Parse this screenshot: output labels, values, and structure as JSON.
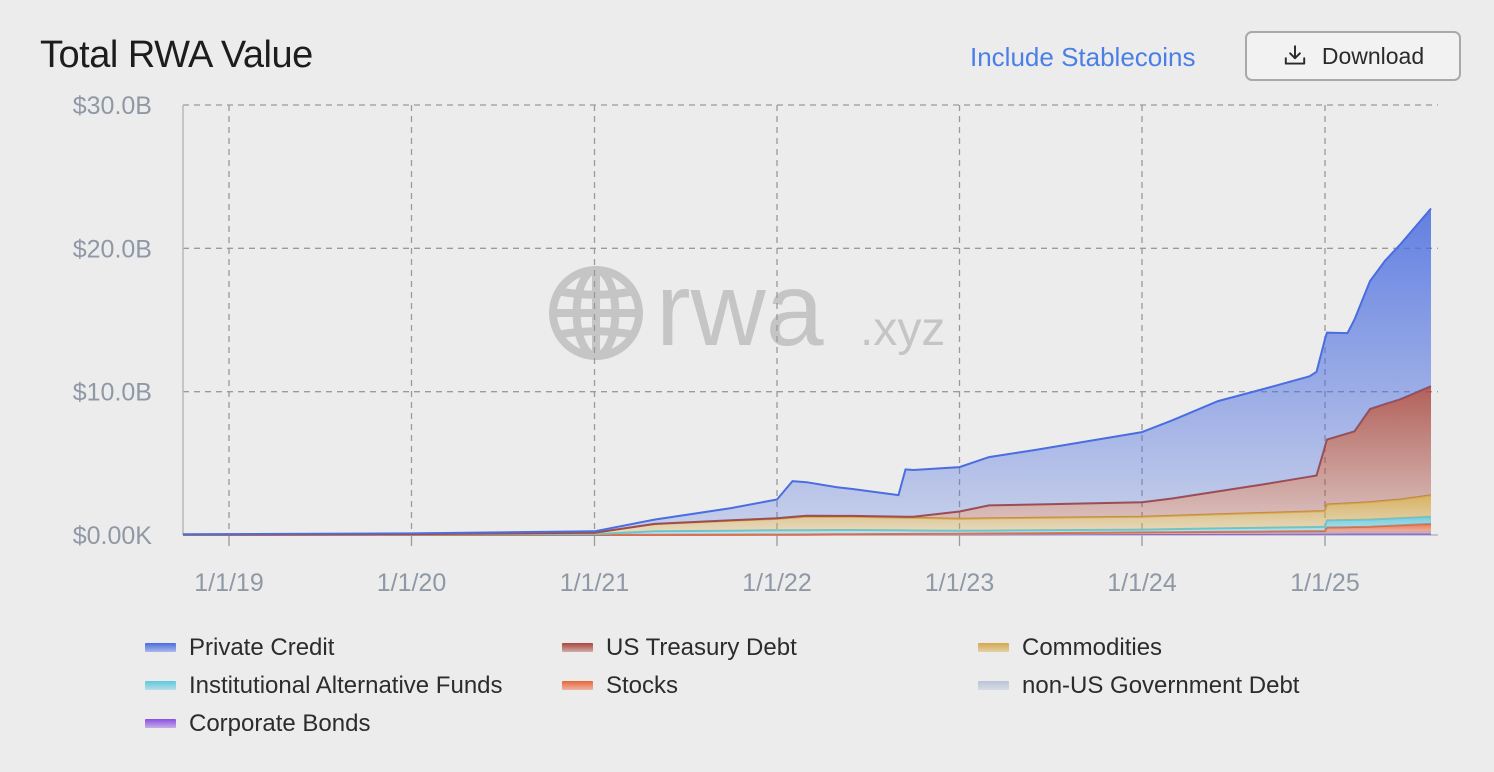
{
  "header": {
    "title": "Total RWA Value",
    "include_stablecoins_label": "Include Stablecoins",
    "download_label": "Download",
    "download_icon": "download-icon"
  },
  "watermark": {
    "brand": "rwa",
    "suffix": ".xyz",
    "icon": "globe-icon"
  },
  "chart_data": {
    "type": "area",
    "stacked": true,
    "title": "Total RWA Value",
    "y_ticks": [
      "$0.00K",
      "$10.0B",
      "$20.0B",
      "$30.0B"
    ],
    "ylim": [
      0,
      30
    ],
    "y_unit": "billions USD",
    "x_ticks": [
      "1/1/19",
      "1/1/20",
      "1/1/21",
      "1/1/22",
      "1/1/23",
      "1/1/24",
      "1/1/25"
    ],
    "xlim": [
      "2018-10-01",
      "2025-08-15"
    ],
    "grid": true,
    "legend_position": "bottom",
    "series": [
      {
        "name": "Corporate Bonds",
        "color": "#8a4fe0",
        "points": [
          [
            "2018-10-01",
            0
          ],
          [
            "2021-01-01",
            0
          ],
          [
            "2023-01-01",
            0.05
          ],
          [
            "2024-01-01",
            0.08
          ],
          [
            "2025-01-01",
            0.1
          ],
          [
            "2025-08-01",
            0.1
          ]
        ]
      },
      {
        "name": "non-US Government Debt",
        "color": "#b9c4d6",
        "points": [
          [
            "2018-10-01",
            0
          ],
          [
            "2022-01-01",
            0
          ],
          [
            "2023-01-01",
            0.02
          ],
          [
            "2024-01-01",
            0.05
          ],
          [
            "2025-01-01",
            0.07
          ],
          [
            "2025-08-01",
            0.08
          ]
        ]
      },
      {
        "name": "Stocks",
        "color": "#e8643a",
        "points": [
          [
            "2018-10-01",
            0
          ],
          [
            "2022-01-01",
            0
          ],
          [
            "2023-01-01",
            0.02
          ],
          [
            "2024-01-01",
            0.05
          ],
          [
            "2025-01-01",
            0.1
          ],
          [
            "2025-01-05",
            0.35
          ],
          [
            "2025-04-01",
            0.4
          ],
          [
            "2025-08-01",
            0.6
          ]
        ]
      },
      {
        "name": "Institutional Alternative Funds",
        "color": "#5fc8de",
        "points": [
          [
            "2018-10-01",
            0.02
          ],
          [
            "2020-01-01",
            0.04
          ],
          [
            "2021-01-01",
            0.06
          ],
          [
            "2021-05-01",
            0.25
          ],
          [
            "2022-01-01",
            0.3
          ],
          [
            "2022-06-01",
            0.3
          ],
          [
            "2023-01-01",
            0.2
          ],
          [
            "2024-01-01",
            0.2
          ],
          [
            "2024-12-31",
            0.3
          ],
          [
            "2025-01-05",
            0.5
          ],
          [
            "2025-08-01",
            0.5
          ]
        ]
      },
      {
        "name": "Commodities",
        "color": "#d4a84a",
        "points": [
          [
            "2018-10-01",
            0.01
          ],
          [
            "2020-01-01",
            0.02
          ],
          [
            "2021-01-01",
            0.1
          ],
          [
            "2021-05-01",
            0.5
          ],
          [
            "2022-01-01",
            0.8
          ],
          [
            "2022-03-01",
            0.95
          ],
          [
            "2023-01-01",
            0.85
          ],
          [
            "2024-01-01",
            0.9
          ],
          [
            "2025-01-01",
            1.1
          ],
          [
            "2025-06-01",
            1.3
          ],
          [
            "2025-08-01",
            1.5
          ]
        ]
      },
      {
        "name": "US Treasury Debt",
        "color": "#a8483f",
        "points": [
          [
            "2018-10-01",
            0
          ],
          [
            "2021-01-01",
            0
          ],
          [
            "2022-01-01",
            0.05
          ],
          [
            "2022-10-01",
            0.07
          ],
          [
            "2023-01-01",
            0.5
          ],
          [
            "2023-03-01",
            0.9
          ],
          [
            "2024-01-01",
            1.0
          ],
          [
            "2024-03-01",
            1.2
          ],
          [
            "2024-09-01",
            2.0
          ],
          [
            "2024-12-15",
            2.5
          ],
          [
            "2025-01-01",
            4.5
          ],
          [
            "2025-03-01",
            5.0
          ],
          [
            "2025-04-01",
            6.5
          ],
          [
            "2025-06-01",
            7.0
          ],
          [
            "2025-08-01",
            7.6
          ]
        ]
      },
      {
        "name": "Private Credit",
        "color": "#4a6de0",
        "points": [
          [
            "2018-10-01",
            0.02
          ],
          [
            "2020-01-01",
            0.05
          ],
          [
            "2021-01-01",
            0.1
          ],
          [
            "2021-05-01",
            0.3
          ],
          [
            "2021-10-01",
            0.85
          ],
          [
            "2022-01-01",
            1.3
          ],
          [
            "2022-02-01",
            2.5
          ],
          [
            "2022-05-01",
            2.0
          ],
          [
            "2022-09-01",
            1.5
          ],
          [
            "2022-09-15",
            3.3
          ],
          [
            "2023-01-01",
            3.1
          ],
          [
            "2023-06-01",
            3.8
          ],
          [
            "2024-01-01",
            4.9
          ],
          [
            "2024-06-01",
            6.3
          ],
          [
            "2024-12-01",
            7.0
          ],
          [
            "2025-01-01",
            7.5
          ],
          [
            "2025-02-15",
            7.0
          ],
          [
            "2025-03-01",
            7.8
          ],
          [
            "2025-05-01",
            10.0
          ],
          [
            "2025-08-01",
            12.4
          ]
        ]
      }
    ]
  },
  "legend_order": [
    "Private Credit",
    "US Treasury Debt",
    "Commodities",
    "Institutional Alternative Funds",
    "Stocks",
    "non-US Government Debt",
    "Corporate Bonds"
  ]
}
